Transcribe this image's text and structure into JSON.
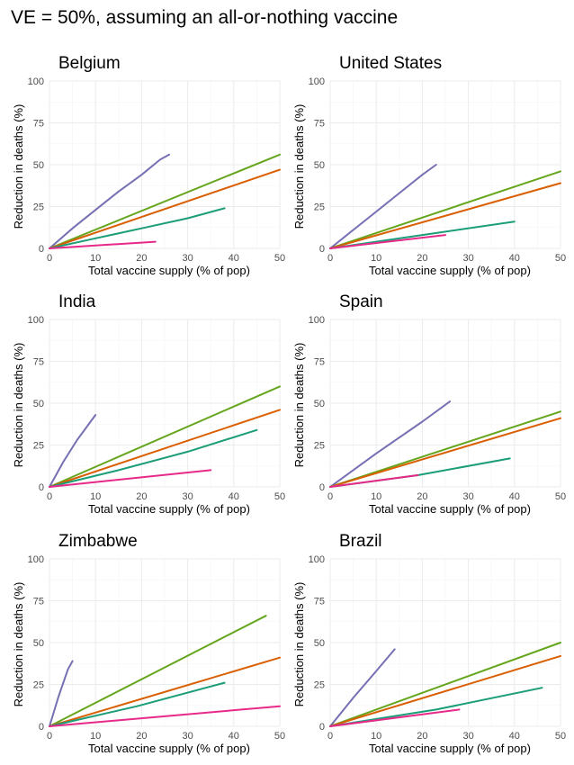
{
  "title": "VE = 50%, assuming an all-or-nothing vaccine",
  "colors": {
    "purple": "#7570b3",
    "green": "#66a61e",
    "orange": "#d95f02",
    "teal": "#1b9e77",
    "pink": "#e7298a"
  },
  "chart_data": [
    {
      "type": "line",
      "title": "Belgium",
      "xlabel": "Total vaccine supply (% of pop)",
      "ylabel": "Reduction in deaths (%)",
      "xlim": [
        0,
        50
      ],
      "ylim": [
        0,
        100
      ],
      "xticks": [
        0,
        10,
        20,
        30,
        40,
        50
      ],
      "yticks": [
        0,
        25,
        50,
        75,
        100
      ],
      "grid": true,
      "series": [
        {
          "color": "purple",
          "x": [
            0,
            5,
            10,
            15,
            20,
            24,
            26
          ],
          "y": [
            0,
            12,
            23,
            34,
            44,
            53,
            56
          ]
        },
        {
          "color": "green",
          "x": [
            0,
            50
          ],
          "y": [
            0,
            56
          ]
        },
        {
          "color": "orange",
          "x": [
            0,
            50
          ],
          "y": [
            0,
            47
          ]
        },
        {
          "color": "teal",
          "x": [
            0,
            10,
            20,
            30,
            38
          ],
          "y": [
            0,
            6,
            12,
            18,
            24
          ]
        },
        {
          "color": "pink",
          "x": [
            0,
            23
          ],
          "y": [
            0,
            4
          ]
        }
      ]
    },
    {
      "type": "line",
      "title": "United States",
      "xlabel": "Total vaccine supply (% of pop)",
      "ylabel": "Reduction in deaths (%)",
      "xlim": [
        0,
        50
      ],
      "ylim": [
        0,
        100
      ],
      "xticks": [
        0,
        10,
        20,
        30,
        40,
        50
      ],
      "yticks": [
        0,
        25,
        50,
        75,
        100
      ],
      "grid": true,
      "series": [
        {
          "color": "purple",
          "x": [
            0,
            5,
            10,
            15,
            20,
            23
          ],
          "y": [
            0,
            11,
            22,
            33,
            44,
            50
          ]
        },
        {
          "color": "green",
          "x": [
            0,
            50
          ],
          "y": [
            0,
            46
          ]
        },
        {
          "color": "orange",
          "x": [
            0,
            50
          ],
          "y": [
            0,
            39
          ]
        },
        {
          "color": "teal",
          "x": [
            0,
            20,
            40
          ],
          "y": [
            0,
            8,
            16
          ]
        },
        {
          "color": "pink",
          "x": [
            0,
            25
          ],
          "y": [
            0,
            8
          ]
        }
      ]
    },
    {
      "type": "line",
      "title": "India",
      "xlabel": "Total vaccine supply (% of pop)",
      "ylabel": "Reduction in deaths (%)",
      "xlim": [
        0,
        50
      ],
      "ylim": [
        0,
        100
      ],
      "xticks": [
        0,
        10,
        20,
        30,
        40,
        50
      ],
      "yticks": [
        0,
        25,
        50,
        75,
        100
      ],
      "grid": true,
      "series": [
        {
          "color": "purple",
          "x": [
            0,
            3,
            6,
            10
          ],
          "y": [
            0,
            15,
            28,
            43
          ]
        },
        {
          "color": "green",
          "x": [
            0,
            50
          ],
          "y": [
            0,
            60
          ]
        },
        {
          "color": "orange",
          "x": [
            0,
            50
          ],
          "y": [
            0,
            46
          ]
        },
        {
          "color": "teal",
          "x": [
            0,
            15,
            30,
            45
          ],
          "y": [
            0,
            10,
            21,
            34
          ]
        },
        {
          "color": "pink",
          "x": [
            0,
            35
          ],
          "y": [
            0,
            10
          ]
        }
      ]
    },
    {
      "type": "line",
      "title": "Spain",
      "xlabel": "Total vaccine supply (% of pop)",
      "ylabel": "Reduction in deaths (%)",
      "xlim": [
        0,
        50
      ],
      "ylim": [
        0,
        100
      ],
      "xticks": [
        0,
        10,
        20,
        30,
        40,
        50
      ],
      "yticks": [
        0,
        25,
        50,
        75,
        100
      ],
      "grid": true,
      "series": [
        {
          "color": "purple",
          "x": [
            0,
            10,
            20,
            26
          ],
          "y": [
            0,
            20,
            39,
            51
          ]
        },
        {
          "color": "green",
          "x": [
            0,
            50
          ],
          "y": [
            0,
            45
          ]
        },
        {
          "color": "orange",
          "x": [
            0,
            50
          ],
          "y": [
            0,
            41
          ]
        },
        {
          "color": "teal",
          "x": [
            0,
            19,
            39
          ],
          "y": [
            0,
            7,
            17
          ]
        },
        {
          "color": "pink",
          "x": [
            0,
            19
          ],
          "y": [
            0,
            7
          ]
        }
      ]
    },
    {
      "type": "line",
      "title": "Zimbabwe",
      "xlabel": "Total vaccine supply (% of pop)",
      "ylabel": "Reduction in deaths (%)",
      "xlim": [
        0,
        50
      ],
      "ylim": [
        0,
        100
      ],
      "xticks": [
        0,
        10,
        20,
        30,
        40,
        50
      ],
      "yticks": [
        0,
        25,
        50,
        75,
        100
      ],
      "grid": true,
      "series": [
        {
          "color": "purple",
          "x": [
            0,
            2,
            4,
            5
          ],
          "y": [
            0,
            18,
            34,
            39
          ]
        },
        {
          "color": "green",
          "x": [
            0,
            47
          ],
          "y": [
            0,
            66
          ]
        },
        {
          "color": "orange",
          "x": [
            0,
            50
          ],
          "y": [
            0,
            41
          ]
        },
        {
          "color": "teal",
          "x": [
            0,
            19,
            38
          ],
          "y": [
            0,
            12,
            26
          ]
        },
        {
          "color": "pink",
          "x": [
            0,
            50
          ],
          "y": [
            0,
            12
          ]
        }
      ]
    },
    {
      "type": "line",
      "title": "Brazil",
      "xlabel": "Total vaccine supply (% of pop)",
      "ylabel": "Reduction in deaths (%)",
      "xlim": [
        0,
        50
      ],
      "ylim": [
        0,
        100
      ],
      "xticks": [
        0,
        10,
        20,
        30,
        40,
        50
      ],
      "yticks": [
        0,
        25,
        50,
        75,
        100
      ],
      "grid": true,
      "series": [
        {
          "color": "purple",
          "x": [
            0,
            5,
            10,
            14
          ],
          "y": [
            0,
            17,
            33,
            46
          ]
        },
        {
          "color": "green",
          "x": [
            0,
            50
          ],
          "y": [
            0,
            50
          ]
        },
        {
          "color": "orange",
          "x": [
            0,
            50
          ],
          "y": [
            0,
            42
          ]
        },
        {
          "color": "teal",
          "x": [
            0,
            23,
            46
          ],
          "y": [
            0,
            10,
            23
          ]
        },
        {
          "color": "pink",
          "x": [
            0,
            28
          ],
          "y": [
            0,
            10
          ]
        }
      ]
    }
  ]
}
